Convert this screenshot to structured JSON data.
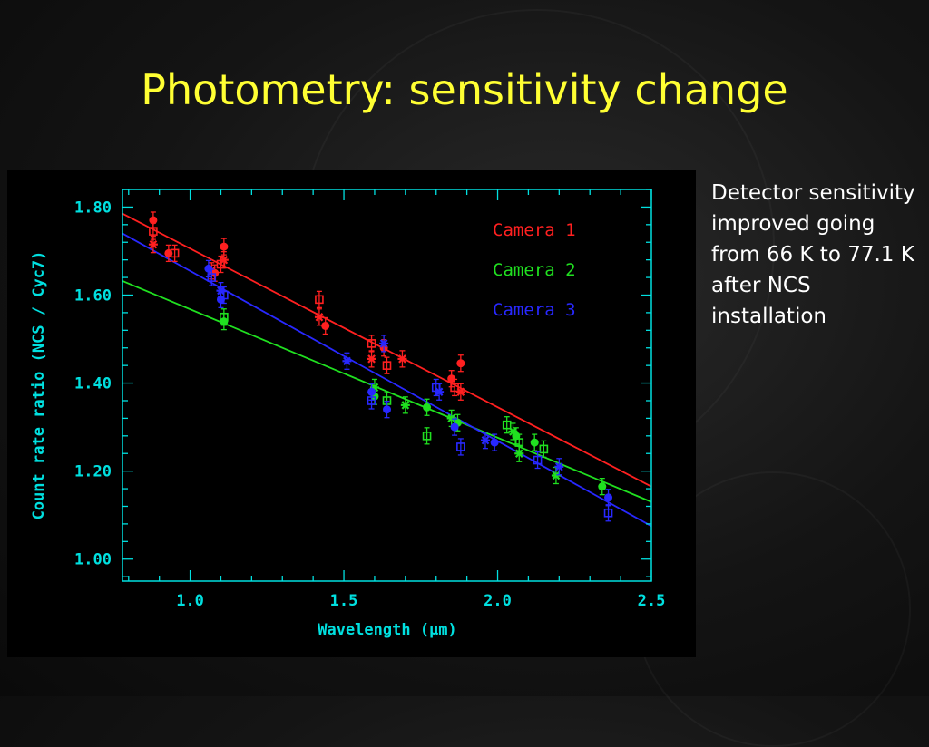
{
  "slide": {
    "title": "Photometry: sensitivity change",
    "side_text": "Detector sensitivity improved going from 66 K to 77.1 K after NCS installation"
  },
  "chart_data": {
    "type": "scatter",
    "title": "",
    "xlabel": "Wavelength (μm)",
    "ylabel": "Count rate ratio (NCS / Cyc7)",
    "xlim": [
      0.78,
      2.5
    ],
    "ylim": [
      0.95,
      1.84
    ],
    "xticks": [
      1.0,
      1.5,
      2.0,
      2.5
    ],
    "xtick_labels": [
      "1.0",
      "1.5",
      "2.0",
      "2.5"
    ],
    "yticks": [
      1.0,
      1.2,
      1.4,
      1.6,
      1.8
    ],
    "ytick_labels": [
      "1.00",
      "1.20",
      "1.40",
      "1.60",
      "1.80"
    ],
    "frame_color": "#00e0e0",
    "legend_position": "top-right",
    "series": [
      {
        "name": "Camera 1",
        "color": "#ff2020",
        "fit_line": {
          "x": [
            0.78,
            2.5
          ],
          "y": [
            1.785,
            1.165
          ]
        },
        "points": [
          {
            "x": 0.88,
            "y": 1.77
          },
          {
            "x": 0.88,
            "y": 1.745
          },
          {
            "x": 0.88,
            "y": 1.715
          },
          {
            "x": 0.93,
            "y": 1.695
          },
          {
            "x": 0.95,
            "y": 1.695
          },
          {
            "x": 1.07,
            "y": 1.655
          },
          {
            "x": 1.08,
            "y": 1.65
          },
          {
            "x": 1.1,
            "y": 1.67
          },
          {
            "x": 1.11,
            "y": 1.68
          },
          {
            "x": 1.11,
            "y": 1.71
          },
          {
            "x": 1.42,
            "y": 1.59
          },
          {
            "x": 1.42,
            "y": 1.55
          },
          {
            "x": 1.44,
            "y": 1.53
          },
          {
            "x": 1.59,
            "y": 1.49
          },
          {
            "x": 1.59,
            "y": 1.455
          },
          {
            "x": 1.63,
            "y": 1.48
          },
          {
            "x": 1.64,
            "y": 1.44
          },
          {
            "x": 1.69,
            "y": 1.455
          },
          {
            "x": 1.85,
            "y": 1.41
          },
          {
            "x": 1.86,
            "y": 1.39
          },
          {
            "x": 1.88,
            "y": 1.38
          },
          {
            "x": 1.88,
            "y": 1.445
          }
        ]
      },
      {
        "name": "Camera 2",
        "color": "#20e020",
        "fit_line": {
          "x": [
            0.78,
            2.5
          ],
          "y": [
            1.632,
            1.13
          ]
        },
        "points": [
          {
            "x": 1.11,
            "y": 1.54
          },
          {
            "x": 1.11,
            "y": 1.55
          },
          {
            "x": 1.6,
            "y": 1.39
          },
          {
            "x": 1.6,
            "y": 1.37
          },
          {
            "x": 1.64,
            "y": 1.36
          },
          {
            "x": 1.7,
            "y": 1.35
          },
          {
            "x": 1.77,
            "y": 1.345
          },
          {
            "x": 1.77,
            "y": 1.28
          },
          {
            "x": 1.85,
            "y": 1.32
          },
          {
            "x": 1.87,
            "y": 1.31
          },
          {
            "x": 2.03,
            "y": 1.305
          },
          {
            "x": 2.05,
            "y": 1.29
          },
          {
            "x": 2.06,
            "y": 1.28
          },
          {
            "x": 2.07,
            "y": 1.265
          },
          {
            "x": 2.07,
            "y": 1.24
          },
          {
            "x": 2.12,
            "y": 1.265
          },
          {
            "x": 2.15,
            "y": 1.25
          },
          {
            "x": 2.19,
            "y": 1.19
          },
          {
            "x": 2.34,
            "y": 1.165
          }
        ]
      },
      {
        "name": "Camera 3",
        "color": "#2828ff",
        "fit_line": {
          "x": [
            0.78,
            2.5
          ],
          "y": [
            1.74,
            1.075
          ]
        },
        "points": [
          {
            "x": 1.06,
            "y": 1.66
          },
          {
            "x": 1.07,
            "y": 1.64
          },
          {
            "x": 1.1,
            "y": 1.61
          },
          {
            "x": 1.1,
            "y": 1.59
          },
          {
            "x": 1.11,
            "y": 1.6
          },
          {
            "x": 1.51,
            "y": 1.45
          },
          {
            "x": 1.59,
            "y": 1.38
          },
          {
            "x": 1.59,
            "y": 1.36
          },
          {
            "x": 1.63,
            "y": 1.49
          },
          {
            "x": 1.64,
            "y": 1.34
          },
          {
            "x": 1.8,
            "y": 1.39
          },
          {
            "x": 1.81,
            "y": 1.38
          },
          {
            "x": 1.86,
            "y": 1.3
          },
          {
            "x": 1.88,
            "y": 1.255
          },
          {
            "x": 1.96,
            "y": 1.27
          },
          {
            "x": 1.99,
            "y": 1.265
          },
          {
            "x": 2.13,
            "y": 1.225
          },
          {
            "x": 2.2,
            "y": 1.21
          },
          {
            "x": 2.36,
            "y": 1.14
          },
          {
            "x": 2.36,
            "y": 1.105
          }
        ]
      }
    ]
  }
}
